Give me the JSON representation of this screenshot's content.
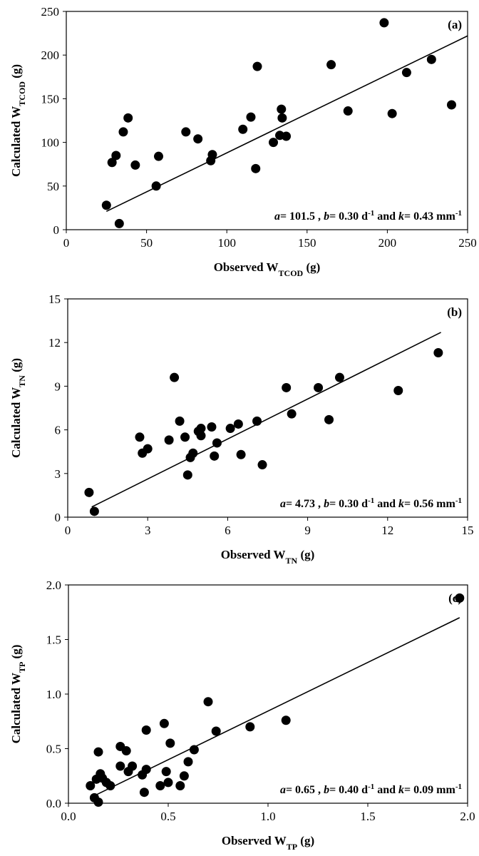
{
  "chart_data": [
    {
      "type": "scatter",
      "panel_label": "(a)",
      "xlabel": {
        "base": "Observed W",
        "sub": "TCOD",
        "tail": " (g)"
      },
      "ylabel": {
        "base": "Calculated W",
        "sub": "TCOD",
        "tail": " (g)"
      },
      "xlim": [
        0,
        250
      ],
      "ylim": [
        0,
        250
      ],
      "xticks": [
        "0",
        "50",
        "100",
        "150",
        "200",
        "250"
      ],
      "yticks": [
        "0",
        "50",
        "100",
        "150",
        "200",
        "250"
      ],
      "x": [
        25,
        28.5,
        31,
        33,
        35.5,
        38.5,
        43,
        56,
        57.5,
        74.5,
        82,
        90,
        91,
        110,
        115,
        118,
        119,
        129,
        133,
        134,
        134.5,
        137,
        165,
        175.5,
        198,
        203,
        212,
        227.5,
        240
      ],
      "y": [
        28,
        77,
        85,
        7,
        112,
        128,
        74,
        50,
        84,
        112,
        104,
        79,
        86,
        115,
        129,
        70,
        187,
        100,
        108,
        138,
        128,
        107,
        189,
        136,
        237,
        133,
        180,
        195,
        143
      ],
      "fit": {
        "x": [
          25,
          250
        ],
        "y": [
          21,
          222
        ]
      },
      "equation": {
        "parts": [
          {
            "t": "a",
            "italic": true
          },
          {
            "t": "= 101.5 , "
          },
          {
            "t": "b",
            "italic": true
          },
          {
            "t": "= 0.30 d"
          },
          {
            "t": "-1",
            "sup": true
          },
          {
            "t": " and "
          },
          {
            "t": "k",
            "italic": true
          },
          {
            "t": "= 0.43 mm"
          },
          {
            "t": "-1",
            "sup": true
          }
        ]
      }
    },
    {
      "type": "scatter",
      "panel_label": "(b)",
      "xlabel": {
        "base": "Observed W",
        "sub": "TN",
        "tail": " (g)"
      },
      "ylabel": {
        "base": "Calculated W",
        "sub": "TN",
        "tail": " (g)"
      },
      "xlim": [
        0,
        15
      ],
      "ylim": [
        0,
        15
      ],
      "xticks": [
        "0",
        "3",
        "6",
        "9",
        "12",
        "15"
      ],
      "yticks": [
        "0",
        "3",
        "6",
        "9",
        "12",
        "15"
      ],
      "x": [
        0.8,
        1.0,
        2.7,
        2.8,
        3.0,
        3.8,
        4.0,
        4.2,
        4.4,
        4.5,
        4.6,
        4.7,
        4.9,
        5.0,
        5.0,
        5.4,
        5.5,
        5.6,
        6.1,
        6.4,
        6.5,
        7.1,
        7.3,
        8.2,
        8.4,
        9.4,
        9.8,
        10.2,
        12.4,
        13.9
      ],
      "y": [
        1.7,
        0.4,
        5.5,
        4.4,
        4.7,
        5.3,
        9.6,
        6.6,
        5.5,
        2.9,
        4.1,
        4.4,
        5.9,
        6.1,
        5.6,
        6.2,
        4.2,
        5.1,
        6.1,
        6.4,
        4.3,
        6.6,
        3.6,
        8.9,
        7.1,
        8.9,
        6.7,
        9.6,
        8.7,
        11.3
      ],
      "fit": {
        "x": [
          0.9,
          14.0
        ],
        "y": [
          0.7,
          12.7
        ]
      },
      "equation": {
        "parts": [
          {
            "t": "a",
            "italic": true
          },
          {
            "t": "= 4.73 , "
          },
          {
            "t": "b",
            "italic": true
          },
          {
            "t": "= 0.30 d"
          },
          {
            "t": "-1",
            "sup": true
          },
          {
            "t": " and "
          },
          {
            "t": "k",
            "italic": true
          },
          {
            "t": "= 0.56 mm"
          },
          {
            "t": "-1",
            "sup": true
          }
        ]
      }
    },
    {
      "type": "scatter",
      "panel_label": "(c)",
      "xlabel": {
        "base": "Observed W",
        "sub": "TP",
        "tail": " (g)"
      },
      "ylabel": {
        "base": "Calculated W",
        "sub": "TP",
        "tail": " (g)"
      },
      "xlim": [
        0,
        2.0
      ],
      "ylim": [
        0,
        2.0
      ],
      "xticks": [
        "0.0",
        "0.5",
        "1.0",
        "1.5",
        "2.0"
      ],
      "yticks": [
        "0.0",
        "0.5",
        "1.0",
        "1.5",
        "2.0"
      ],
      "x": [
        0.11,
        0.13,
        0.14,
        0.15,
        0.15,
        0.16,
        0.17,
        0.19,
        0.21,
        0.26,
        0.26,
        0.29,
        0.3,
        0.32,
        0.37,
        0.38,
        0.39,
        0.39,
        0.46,
        0.48,
        0.49,
        0.5,
        0.51,
        0.56,
        0.58,
        0.6,
        0.63,
        0.7,
        0.74,
        0.91,
        1.09,
        1.96
      ],
      "y": [
        0.16,
        0.05,
        0.22,
        0.01,
        0.47,
        0.27,
        0.23,
        0.19,
        0.16,
        0.34,
        0.52,
        0.48,
        0.29,
        0.34,
        0.26,
        0.1,
        0.31,
        0.67,
        0.16,
        0.73,
        0.29,
        0.19,
        0.55,
        0.16,
        0.25,
        0.38,
        0.49,
        0.93,
        0.66,
        0.7,
        0.76,
        1.88
      ],
      "fit": {
        "x": [
          0.12,
          1.96
        ],
        "y": [
          0.06,
          1.7
        ]
      },
      "equation": {
        "parts": [
          {
            "t": "a",
            "italic": true
          },
          {
            "t": "= 0.65 , "
          },
          {
            "t": "b",
            "italic": true
          },
          {
            "t": "= 0.40 d"
          },
          {
            "t": "-1",
            "sup": true
          },
          {
            "t": " and "
          },
          {
            "t": "k",
            "italic": true
          },
          {
            "t": "= 0.09 mm"
          },
          {
            "t": "-1",
            "sup": true
          }
        ]
      }
    }
  ]
}
